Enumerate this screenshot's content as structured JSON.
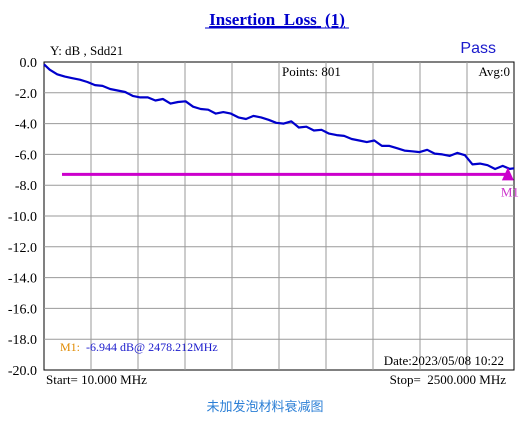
{
  "chart_data": {
    "type": "line",
    "title_main": "Insertion_Loss",
    "title_suffix": "(1)",
    "status": "Pass",
    "ylabel": "Y: dB , Sdd21",
    "points_label": "Points: 801",
    "avg_label": "Avg:0",
    "date_label": "Date:2023/05/08 10:22",
    "start_label": "Start= 10.000 MHz",
    "stop_label": "Stop=  2500.000 MHz",
    "ylim": [
      -20.0,
      0.0
    ],
    "xlim": [
      10.0,
      2500.0
    ],
    "y_ticks": [
      "0.0",
      "-2.0",
      "-4.0",
      "-6.0",
      "-8.0",
      "-10.0",
      "-12.0",
      "-14.0",
      "-16.0",
      "-18.0",
      "-20.0"
    ],
    "x_divisions": 10,
    "series": [
      {
        "color": "#0000cc",
        "x": [
          10,
          40,
          80,
          120,
          160,
          200,
          240,
          280,
          320,
          360,
          400,
          440,
          480,
          520,
          560,
          600,
          640,
          680,
          720,
          760,
          800,
          840,
          880,
          920,
          960,
          1000,
          1040,
          1080,
          1120,
          1160,
          1200,
          1240,
          1280,
          1320,
          1360,
          1400,
          1440,
          1480,
          1520,
          1560,
          1600,
          1640,
          1680,
          1720,
          1760,
          1800,
          1840,
          1880,
          1920,
          1960,
          2000,
          2040,
          2080,
          2120,
          2160,
          2200,
          2240,
          2280,
          2320,
          2360,
          2400,
          2440,
          2478,
          2500
        ],
        "values": [
          -0.15,
          -0.5,
          -0.8,
          -0.95,
          -1.05,
          -1.15,
          -1.3,
          -1.5,
          -1.55,
          -1.75,
          -1.85,
          -1.95,
          -2.2,
          -2.3,
          -2.3,
          -2.5,
          -2.4,
          -2.7,
          -2.6,
          -2.55,
          -2.9,
          -3.05,
          -3.1,
          -3.35,
          -3.25,
          -3.35,
          -3.6,
          -3.7,
          -3.5,
          -3.6,
          -3.75,
          -3.95,
          -4.0,
          -3.85,
          -4.25,
          -4.2,
          -4.45,
          -4.4,
          -4.65,
          -4.75,
          -4.8,
          -5.0,
          -5.1,
          -5.2,
          -5.1,
          -5.45,
          -5.45,
          -5.6,
          -5.75,
          -5.8,
          -5.85,
          -5.7,
          -5.95,
          -6.0,
          -6.1,
          -5.9,
          -6.05,
          -6.65,
          -6.6,
          -6.7,
          -6.95,
          -6.75,
          -6.944,
          -6.9
        ]
      }
    ],
    "limit_line": {
      "value": -7.3,
      "x_start": 10,
      "x_end": 2500,
      "color": "#cc00cc"
    },
    "marker": {
      "name": "M1",
      "x": 2478.212,
      "y": -6.944,
      "readout_prefix": "M1:",
      "readout_value": "-6.944 dB@ 2478.212MHz"
    },
    "grid": true,
    "caption": "未加发泡材料衰减图",
    "colors": {
      "trace": "#0000cc",
      "limit": "#cc00cc",
      "grid": "#9a9a9a",
      "frame": "#000000",
      "marker_label": "#e08a00"
    }
  }
}
